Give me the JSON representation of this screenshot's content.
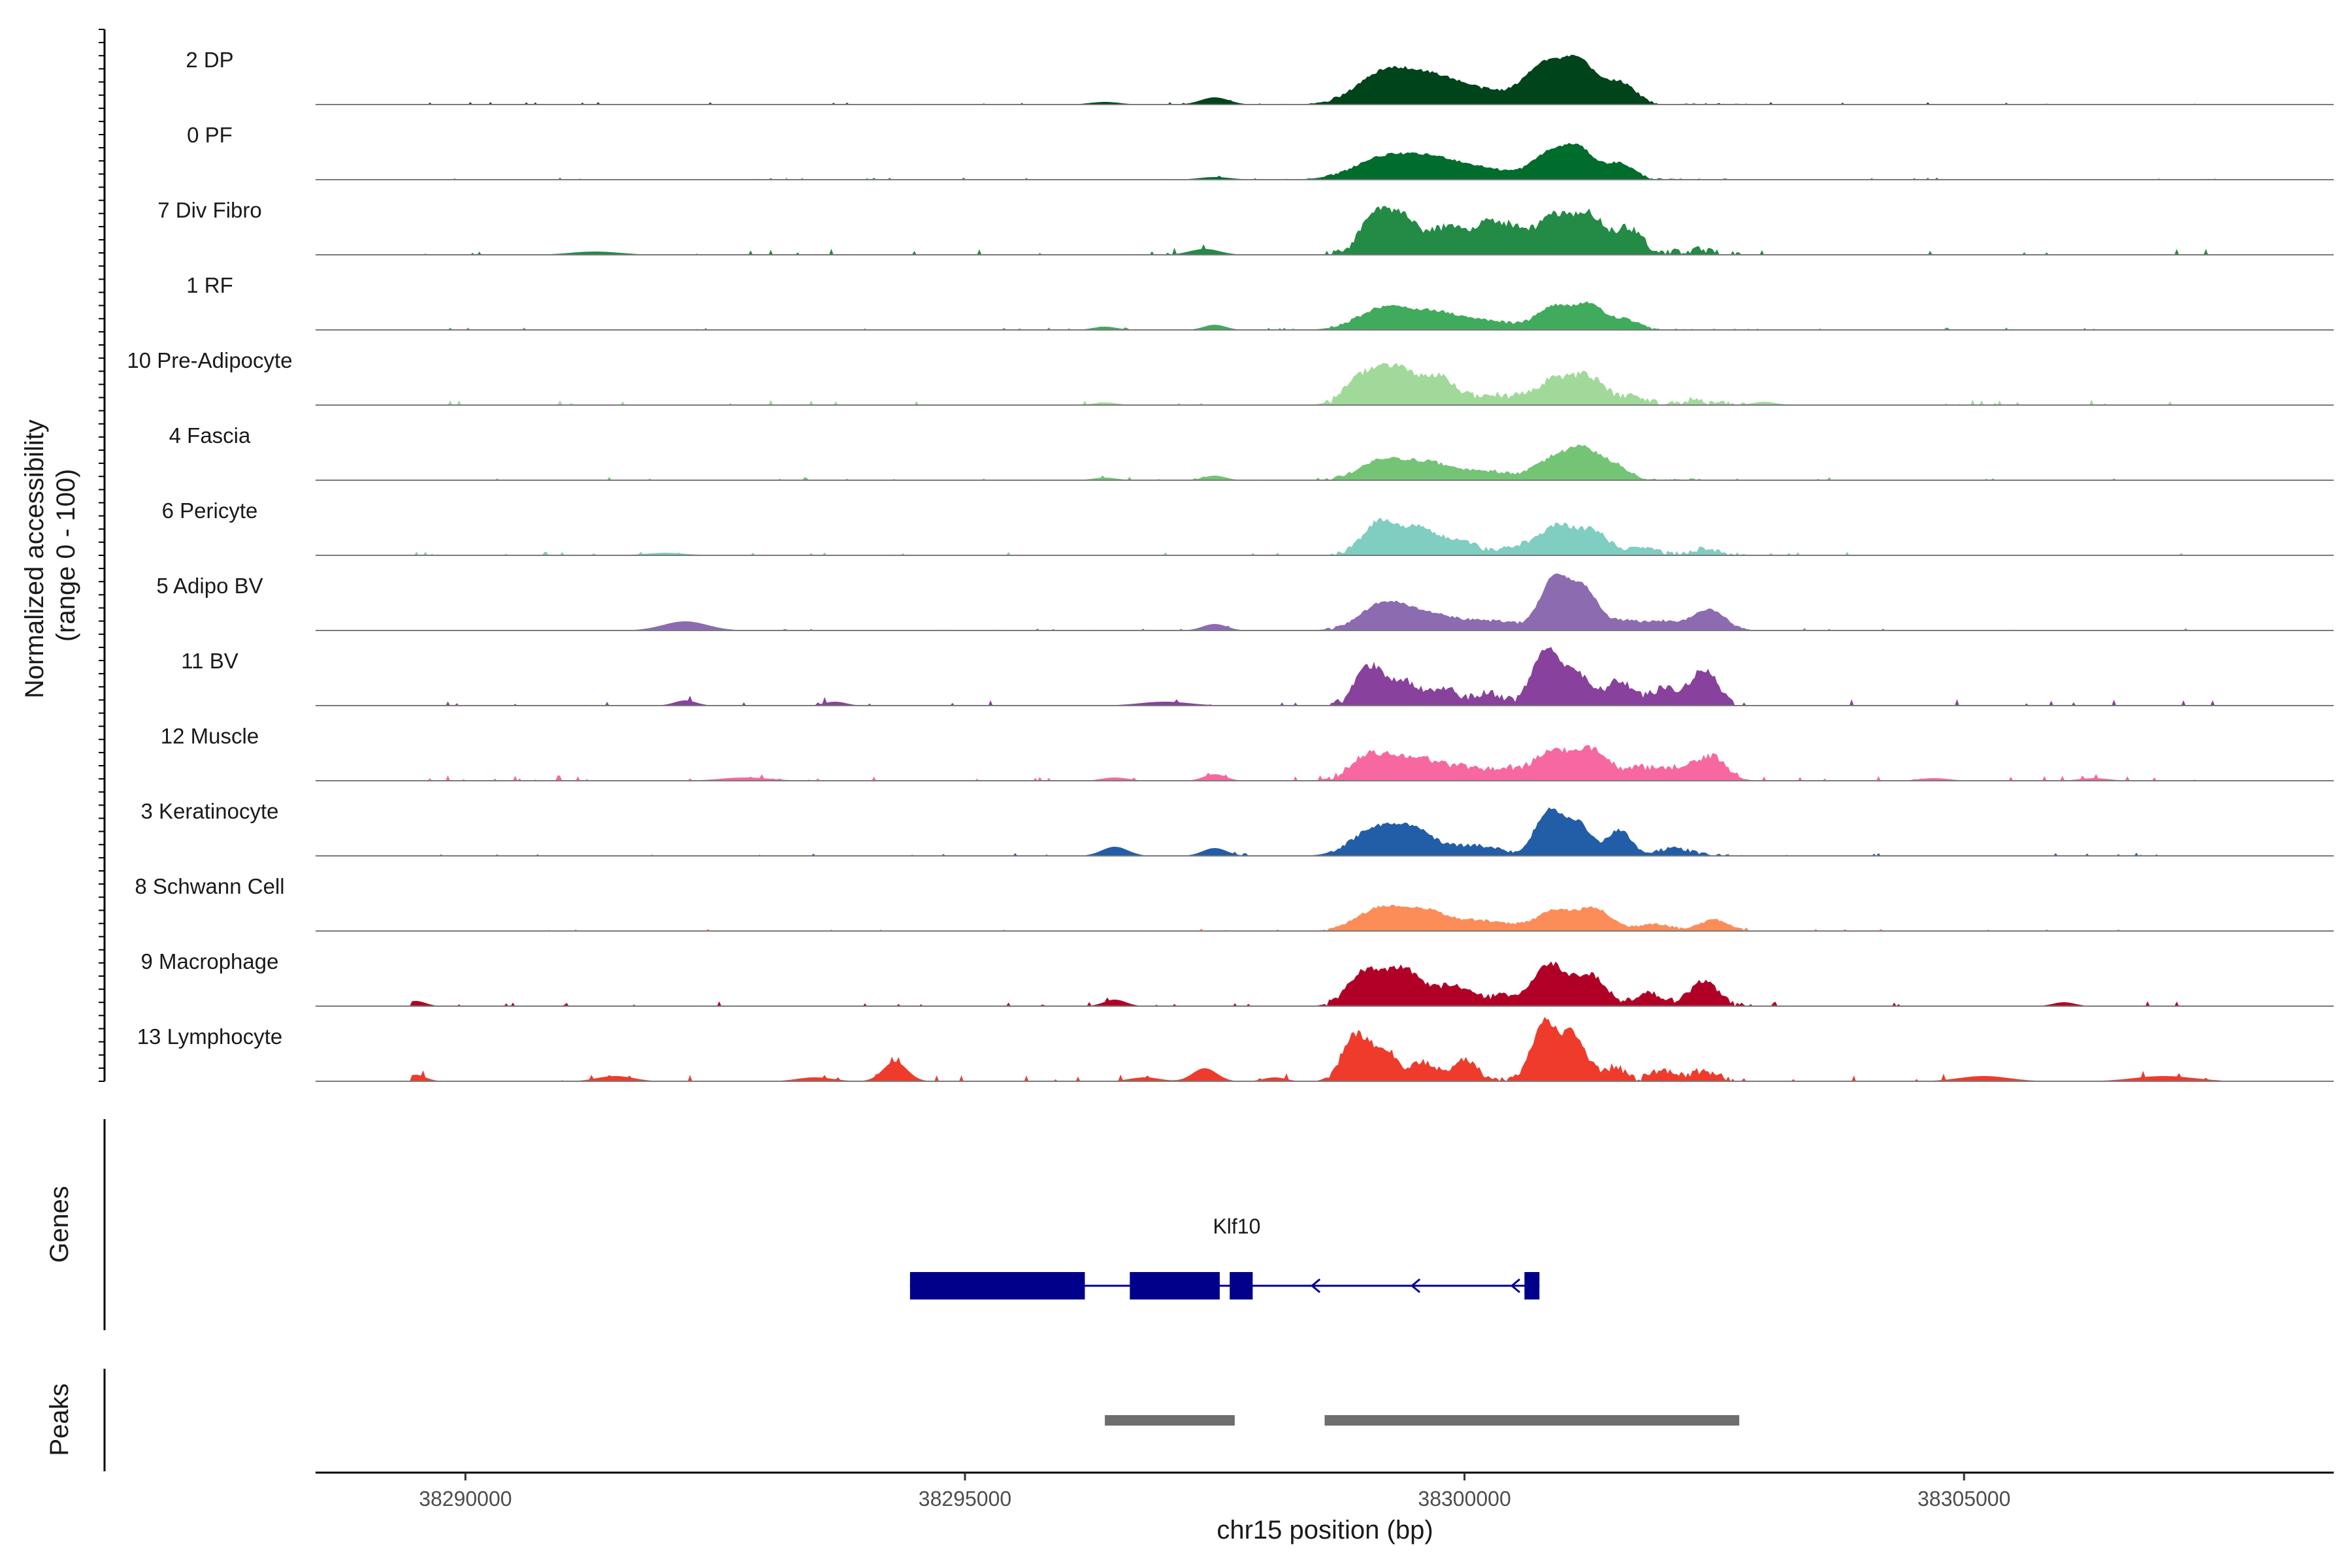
{
  "chart_data": {
    "type": "area",
    "title": "",
    "ylabel_lines": [
      "Normalized accessibility",
      "(range 0 - 100)"
    ],
    "xlabel": "chr15 position (bp)",
    "xlim": [
      38288500,
      38308700
    ],
    "ylim": [
      0,
      100
    ],
    "x_ticks": [
      38290000,
      38295000,
      38300000,
      38305000
    ],
    "x_tick_labels": [
      "38290000",
      "38295000",
      "38300000",
      "38305000"
    ],
    "tracks": [
      {
        "name": "2 DP",
        "color": "#00441b",
        "profile": "dp"
      },
      {
        "name": "0 PF",
        "color": "#006d2c",
        "profile": "pf"
      },
      {
        "name": "7 Div Fibro",
        "color": "#238b45",
        "profile": "divfibro"
      },
      {
        "name": "1 RF",
        "color": "#41ab5d",
        "profile": "rf"
      },
      {
        "name": "10 Pre-Adipocyte",
        "color": "#a1d99b",
        "profile": "preadipo"
      },
      {
        "name": "4 Fascia",
        "color": "#74c476",
        "profile": "fascia"
      },
      {
        "name": "6 Pericyte",
        "color": "#80cdc1",
        "profile": "pericyte"
      },
      {
        "name": "5 Adipo BV",
        "color": "#8c6bb1",
        "profile": "adipobv"
      },
      {
        "name": "11 BV",
        "color": "#88419d",
        "profile": "bv"
      },
      {
        "name": "12 Muscle",
        "color": "#f768a1",
        "profile": "muscle"
      },
      {
        "name": "3 Keratinocyte",
        "color": "#225ea8",
        "profile": "kerat"
      },
      {
        "name": "8 Schwann Cell",
        "color": "#fc8d59",
        "profile": "schwann"
      },
      {
        "name": "9 Macrophage",
        "color": "#b10026",
        "profile": "macro"
      },
      {
        "name": "13 Lymphocyte",
        "color": "#ef3b2c",
        "profile": "lympho"
      }
    ],
    "genes": {
      "panel_label": "Genes",
      "color": "#00008b",
      "items": [
        {
          "name": "Klf10",
          "strand": "-",
          "start": 38294450,
          "end": 38300750,
          "exons": [
            [
              38294450,
              38296200
            ],
            [
              38296650,
              38297550
            ],
            [
              38297650,
              38297880
            ],
            [
              38300600,
              38300750
            ]
          ],
          "arrow_positions": [
            38296000,
            38298500,
            38299500,
            38300500
          ]
        }
      ]
    },
    "peaks": {
      "panel_label": "Peaks",
      "color": "#6e6e6e",
      "regions": [
        [
          38296400,
          38297700
        ],
        [
          38298600,
          38302750
        ]
      ]
    }
  }
}
